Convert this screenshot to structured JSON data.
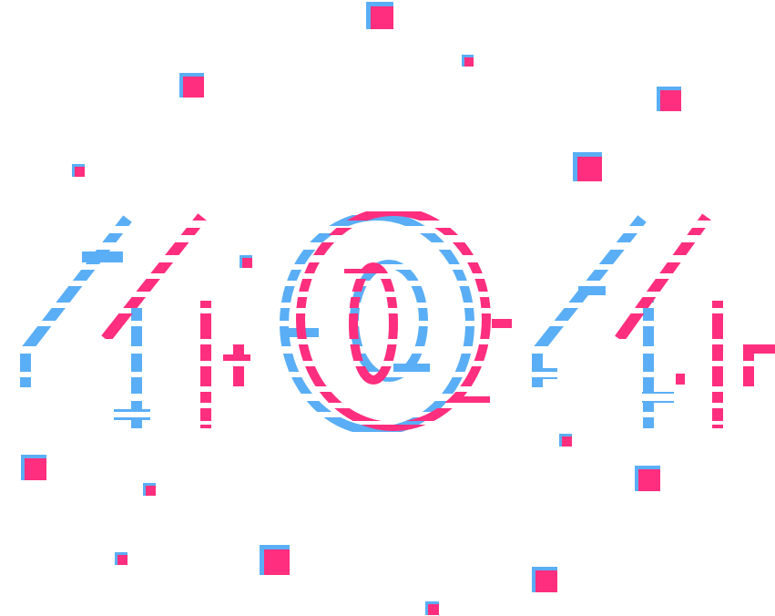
{
  "error": {
    "code_text": "404",
    "digits": [
      "4",
      "0",
      "4"
    ]
  },
  "colors": {
    "background": "#ffffff",
    "blue": "#5aaef5",
    "pink": "#ff2e7e"
  },
  "icons": {
    "confetti": "square-confetti-icon"
  }
}
